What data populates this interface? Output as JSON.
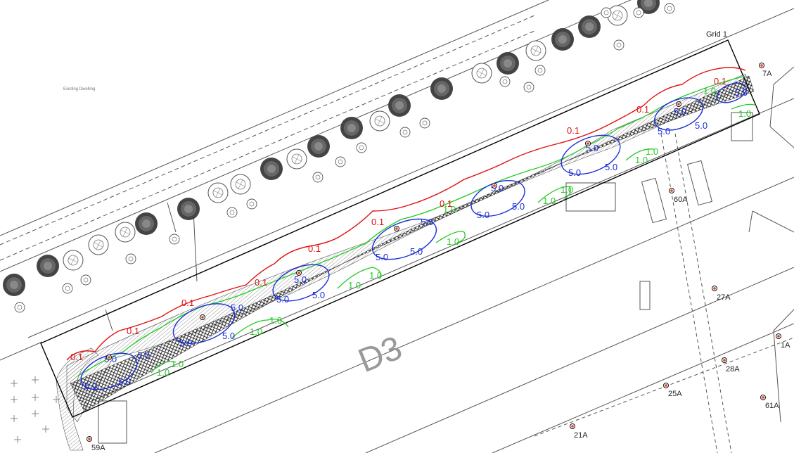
{
  "colors": {
    "red": "#e01010",
    "green": "#22cc22",
    "blue": "#1a2ed6",
    "lines": "#555555",
    "marker": "#e04020"
  },
  "plan": {
    "grid_label": "Grid 1",
    "building_label": "D3",
    "existing_label": "Existing Dwelling",
    "points": [
      "7A",
      "60A",
      "27A",
      "1A",
      "28A",
      "25A",
      "61A",
      "21A",
      "59A"
    ],
    "contour_values": {
      "red": "0.1",
      "green": "1.0",
      "blue": "5.0"
    }
  }
}
